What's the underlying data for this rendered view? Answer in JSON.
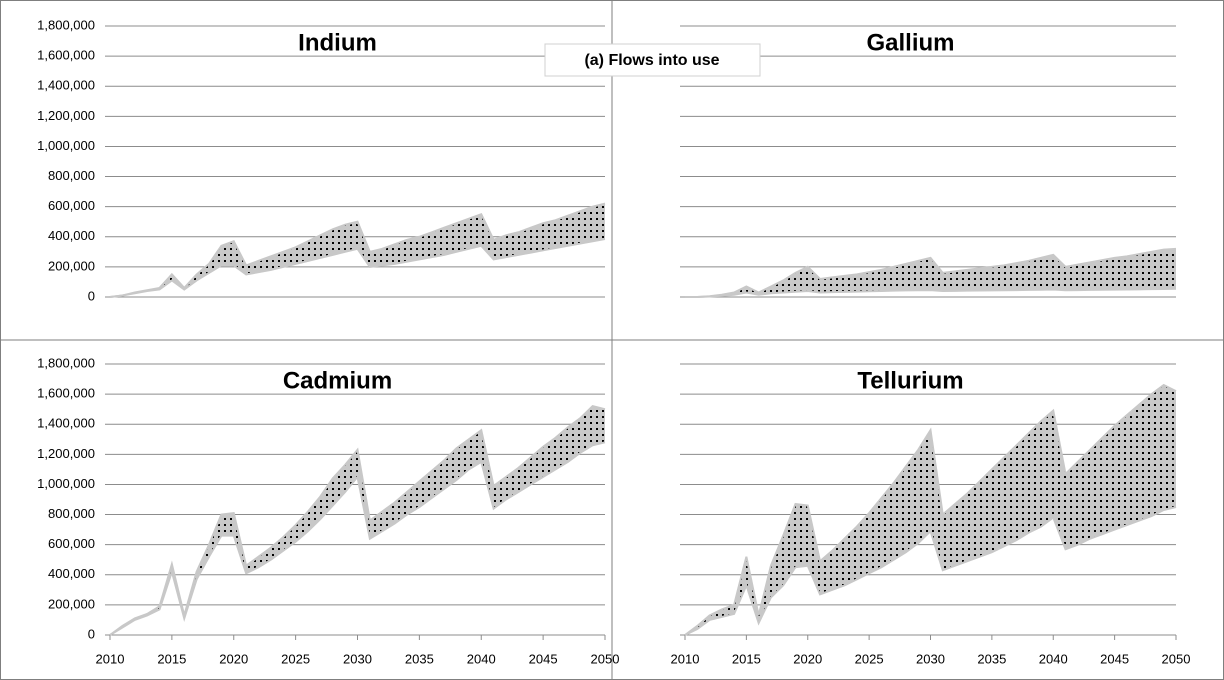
{
  "annotation": "(a) Flows into use",
  "chart_data": [
    {
      "type": "area",
      "title": "Indium",
      "color": "#c8c8c8",
      "ytick_labels": true,
      "x": [
        2010,
        2011,
        2012,
        2013,
        2014,
        2015,
        2016,
        2017,
        2018,
        2019,
        2020,
        2021,
        2022,
        2023,
        2024,
        2025,
        2026,
        2027,
        2028,
        2029,
        2030,
        2031,
        2032,
        2033,
        2034,
        2035,
        2036,
        2037,
        2038,
        2039,
        2040,
        2041,
        2042,
        2043,
        2044,
        2045,
        2046,
        2047,
        2048,
        2049,
        2050
      ],
      "xlim": [
        2010,
        2050
      ],
      "series": [
        {
          "values": [
            0,
            10000,
            30000,
            45000,
            60000,
            150000,
            60000,
            150000,
            220000,
            340000,
            370000,
            210000,
            240000,
            270000,
            300000,
            330000,
            370000,
            410000,
            450000,
            480000,
            500000,
            300000,
            320000,
            350000,
            380000,
            400000,
            430000,
            460000,
            490000,
            520000,
            550000,
            380000,
            410000,
            430000,
            460000,
            490000,
            510000,
            540000,
            570000,
            600000,
            620000
          ]
        },
        {
          "values": [
            0,
            10000,
            25000,
            40000,
            50000,
            110000,
            50000,
            110000,
            160000,
            210000,
            210000,
            150000,
            165000,
            180000,
            200000,
            220000,
            240000,
            260000,
            280000,
            300000,
            320000,
            200000,
            210000,
            220000,
            235000,
            250000,
            265000,
            280000,
            300000,
            320000,
            340000,
            250000,
            265000,
            280000,
            295000,
            310000,
            325000,
            340000,
            355000,
            370000,
            385000
          ]
        }
      ],
      "ylim": [
        0,
        1800000
      ],
      "yticks": [
        0,
        {
          "value": 200000,
          "label": "200,000"
        },
        {
          "value": 400000,
          "label": "400,000"
        },
        {
          "value": 600000,
          "label": "600,000"
        },
        {
          "value": 800000,
          "label": "800,000"
        },
        {
          "value": 1000000,
          "label": "1,000,000"
        },
        {
          "value": 1200000,
          "label": "1,200,000"
        },
        {
          "value": 1400000,
          "label": "1,400,000"
        },
        {
          "value": 1600000,
          "label": "1,600,000"
        },
        {
          "value": 1800000,
          "label": "1,800,000"
        }
      ]
    },
    {
      "type": "area",
      "title": "Gallium",
      "color": "#c8c8c8",
      "ytick_labels": false,
      "x": [
        2010,
        2011,
        2012,
        2013,
        2014,
        2015,
        2016,
        2017,
        2018,
        2019,
        2020,
        2021,
        2022,
        2023,
        2024,
        2025,
        2026,
        2027,
        2028,
        2029,
        2030,
        2031,
        2032,
        2033,
        2034,
        2035,
        2036,
        2037,
        2038,
        2039,
        2040,
        2041,
        2042,
        2043,
        2044,
        2045,
        2046,
        2047,
        2048,
        2049,
        2050
      ],
      "xlim": [
        2010,
        2050
      ],
      "series": [
        {
          "values": [
            0,
            0,
            5000,
            15000,
            30000,
            70000,
            30000,
            70000,
            110000,
            160000,
            200000,
            120000,
            130000,
            140000,
            150000,
            165000,
            180000,
            200000,
            220000,
            240000,
            260000,
            160000,
            170000,
            180000,
            190000,
            200000,
            210000,
            225000,
            240000,
            260000,
            280000,
            200000,
            215000,
            230000,
            245000,
            260000,
            270000,
            285000,
            300000,
            315000,
            320000
          ]
        },
        {
          "values": [
            0,
            0,
            3000,
            8000,
            15000,
            30000,
            15000,
            25000,
            30000,
            35000,
            40000,
            30000,
            32000,
            34000,
            36000,
            38000,
            40000,
            42000,
            44000,
            45000,
            46000,
            40000,
            41000,
            42000,
            43000,
            44000,
            45000,
            46000,
            47000,
            48000,
            50000,
            45000,
            46000,
            47000,
            48000,
            49000,
            50000,
            51000,
            52000,
            53000,
            55000
          ]
        }
      ],
      "ylim": [
        0,
        1800000
      ],
      "yticks": [
        0,
        200000,
        400000,
        600000,
        800000,
        1000000,
        1200000,
        1400000,
        1600000,
        1800000
      ]
    },
    {
      "type": "area",
      "title": "Cadmium",
      "color": "#c8c8c8",
      "ytick_labels": true,
      "x": [
        2010,
        2011,
        2012,
        2013,
        2014,
        2015,
        2016,
        2017,
        2018,
        2019,
        2020,
        2021,
        2022,
        2023,
        2024,
        2025,
        2026,
        2027,
        2028,
        2029,
        2030,
        2031,
        2032,
        2033,
        2034,
        2035,
        2036,
        2037,
        2038,
        2039,
        2040,
        2041,
        2042,
        2043,
        2044,
        2045,
        2046,
        2047,
        2048,
        2049,
        2050
      ],
      "xlim": [
        2010,
        2050
      ],
      "xticks": [
        2010,
        2015,
        2020,
        2025,
        2030,
        2035,
        2040,
        2045,
        2050
      ],
      "series": [
        {
          "values": [
            0,
            60000,
            110000,
            140000,
            190000,
            470000,
            130000,
            420000,
            600000,
            800000,
            810000,
            460000,
            520000,
            580000,
            650000,
            730000,
            820000,
            920000,
            1040000,
            1130000,
            1230000,
            760000,
            820000,
            880000,
            950000,
            1020000,
            1090000,
            1160000,
            1240000,
            1300000,
            1360000,
            990000,
            1050000,
            1110000,
            1180000,
            1250000,
            1310000,
            1380000,
            1440000,
            1520000,
            1500000
          ]
        },
        {
          "values": [
            0,
            50000,
            100000,
            130000,
            170000,
            420000,
            110000,
            370000,
            520000,
            660000,
            660000,
            410000,
            450000,
            500000,
            560000,
            620000,
            690000,
            770000,
            860000,
            950000,
            1050000,
            640000,
            690000,
            740000,
            800000,
            850000,
            910000,
            970000,
            1030000,
            1100000,
            1150000,
            840000,
            900000,
            950000,
            1000000,
            1050000,
            1100000,
            1150000,
            1210000,
            1260000,
            1280000
          ]
        }
      ],
      "ylim": [
        0,
        1800000
      ],
      "yticks": [
        0,
        {
          "value": 200000,
          "label": "200,000"
        },
        {
          "value": 400000,
          "label": "400,000"
        },
        {
          "value": 600000,
          "label": "600,000"
        },
        {
          "value": 800000,
          "label": "800,000"
        },
        {
          "value": 1000000,
          "label": "1,000,000"
        },
        {
          "value": 1200000,
          "label": "1,200,000"
        },
        {
          "value": 1400000,
          "label": "1,400,000"
        },
        {
          "value": 1600000,
          "label": "1,600,000"
        },
        {
          "value": 1800000,
          "label": "1,800,000"
        }
      ]
    },
    {
      "type": "area",
      "title": "Tellurium",
      "color": "#c8c8c8",
      "ytick_labels": false,
      "x": [
        2010,
        2011,
        2012,
        2013,
        2014,
        2015,
        2016,
        2017,
        2018,
        2019,
        2020,
        2021,
        2022,
        2023,
        2024,
        2025,
        2026,
        2027,
        2028,
        2029,
        2030,
        2031,
        2032,
        2033,
        2034,
        2035,
        2036,
        2037,
        2038,
        2039,
        2040,
        2041,
        2042,
        2043,
        2044,
        2045,
        2046,
        2047,
        2048,
        2049,
        2050
      ],
      "xlim": [
        2010,
        2050
      ],
      "xticks": [
        2010,
        2015,
        2020,
        2025,
        2030,
        2035,
        2040,
        2045,
        2050
      ],
      "series": [
        {
          "values": [
            0,
            60000,
            130000,
            170000,
            200000,
            520000,
            130000,
            460000,
            660000,
            870000,
            860000,
            490000,
            560000,
            640000,
            720000,
            810000,
            910000,
            1010000,
            1120000,
            1230000,
            1360000,
            800000,
            870000,
            940000,
            1020000,
            1100000,
            1180000,
            1260000,
            1340000,
            1420000,
            1490000,
            1070000,
            1150000,
            1230000,
            1310000,
            1390000,
            1460000,
            1530000,
            1600000,
            1660000,
            1620000
          ]
        },
        {
          "values": [
            0,
            40000,
            100000,
            120000,
            140000,
            330000,
            80000,
            250000,
            330000,
            450000,
            460000,
            270000,
            300000,
            330000,
            370000,
            410000,
            450000,
            500000,
            550000,
            610000,
            690000,
            430000,
            460000,
            490000,
            520000,
            550000,
            590000,
            630000,
            680000,
            720000,
            780000,
            570000,
            600000,
            640000,
            670000,
            700000,
            730000,
            760000,
            790000,
            830000,
            850000
          ]
        }
      ],
      "ylim": [
        0,
        1800000
      ],
      "yticks": [
        0,
        200000,
        400000,
        600000,
        800000,
        1000000,
        1200000,
        1400000,
        1600000,
        1800000
      ]
    }
  ]
}
